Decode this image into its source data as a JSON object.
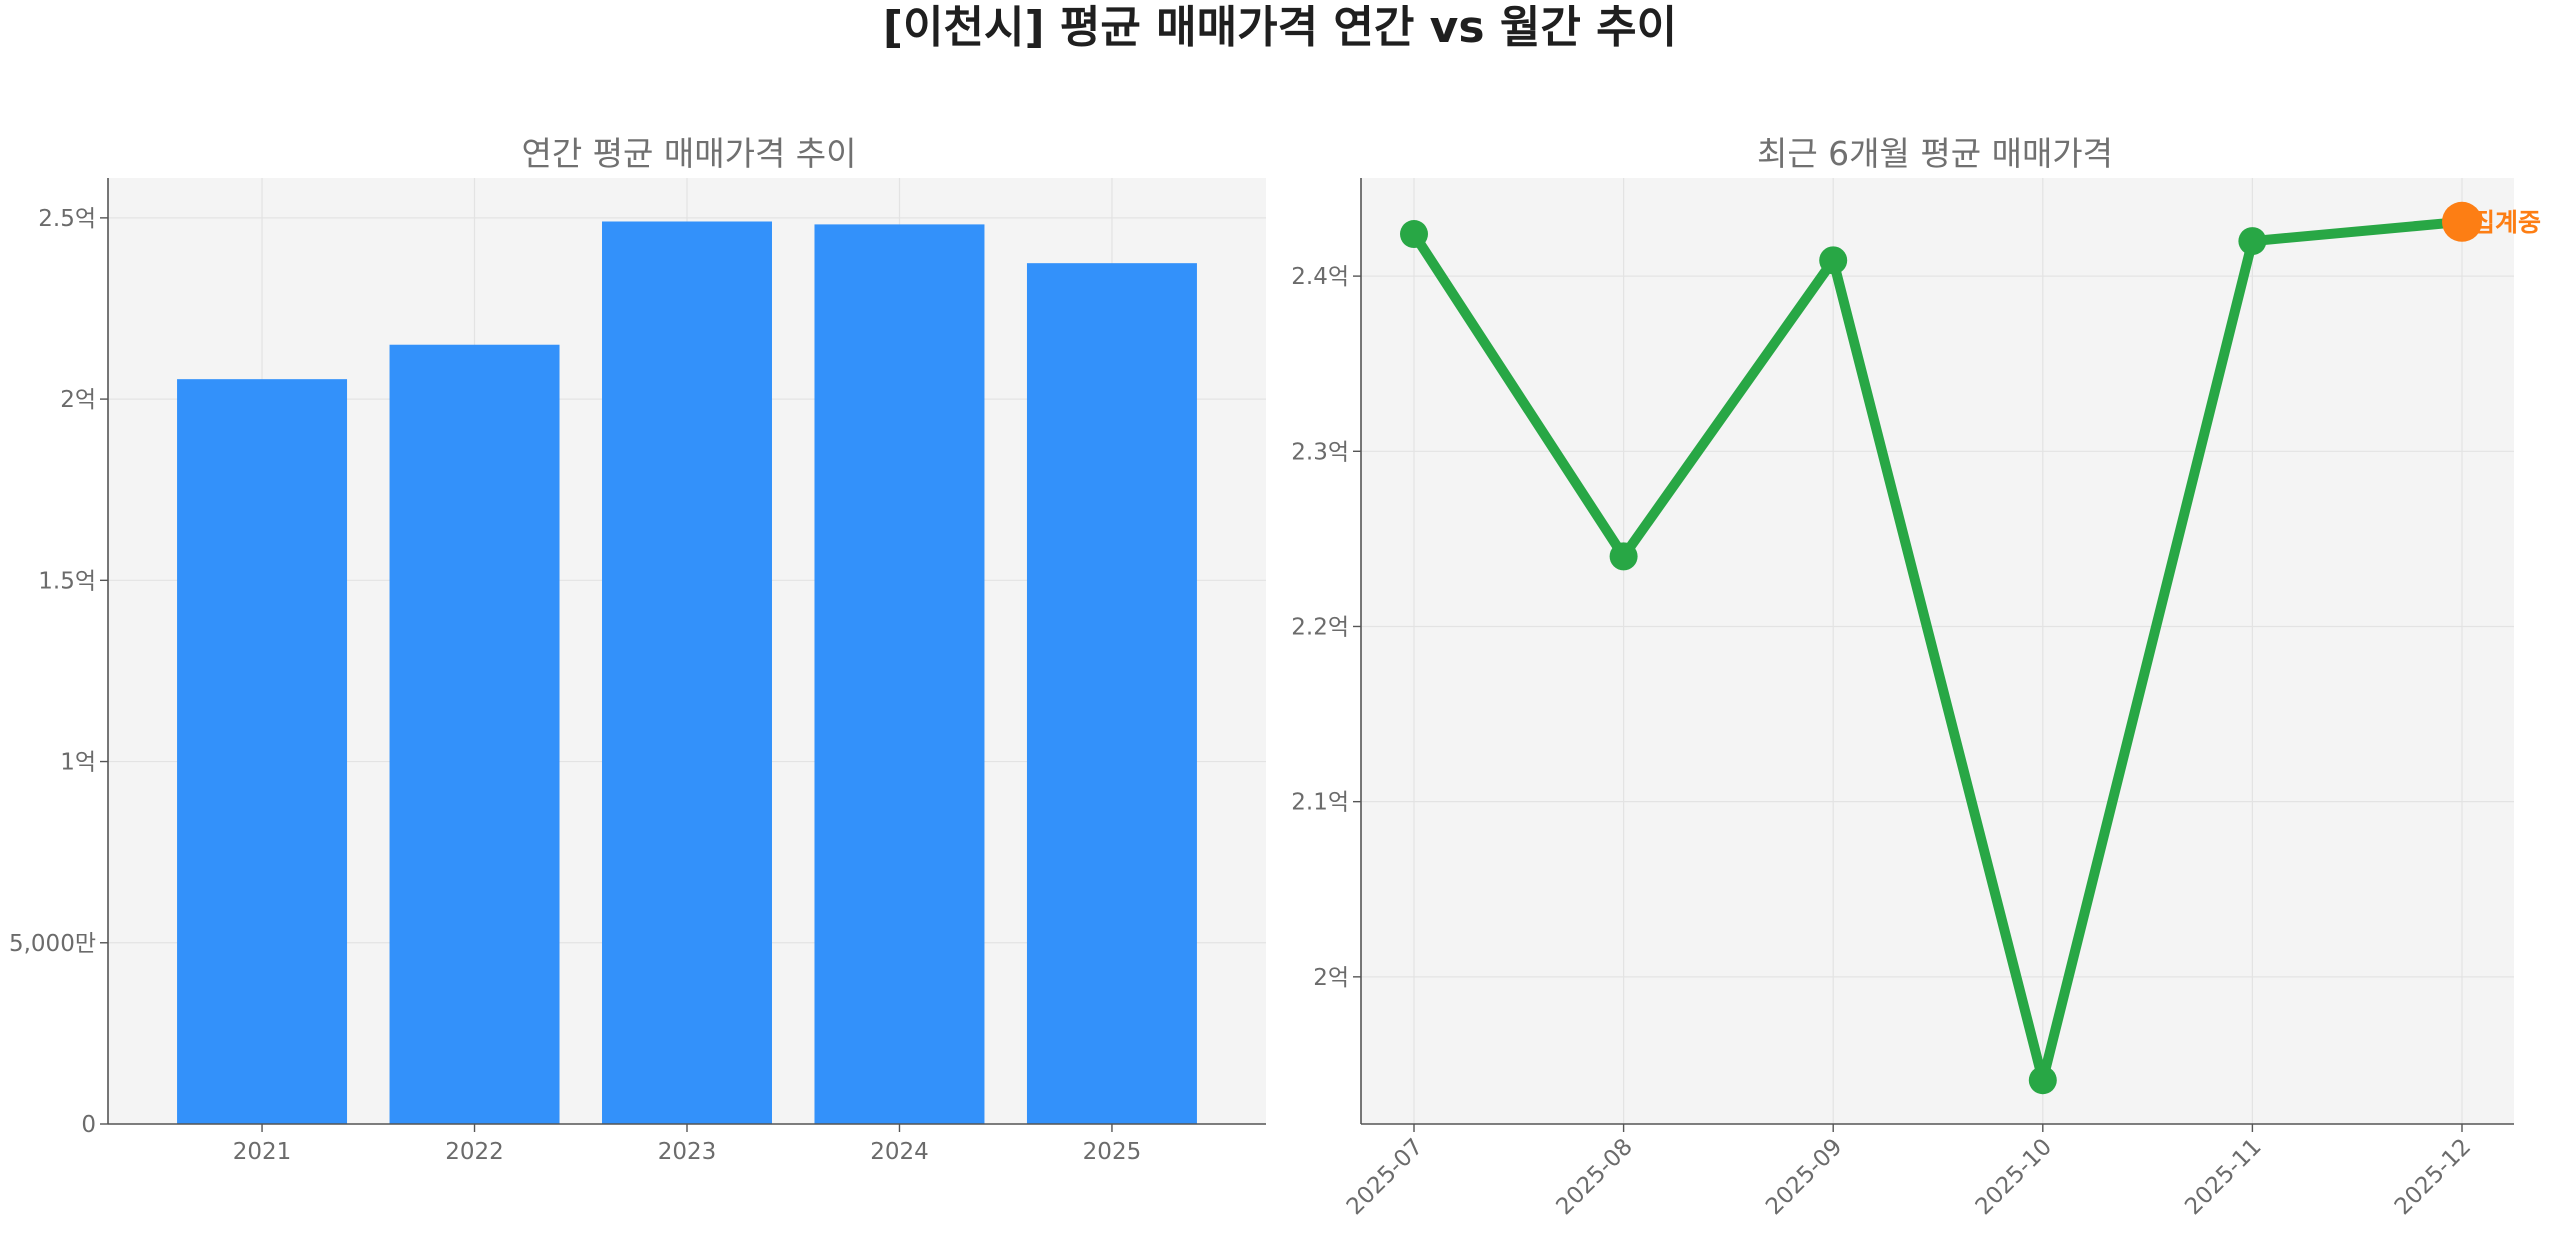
{
  "figure": {
    "title": "[이천시] 평균 매매가격 연간 vs 월간 추이"
  },
  "chart_data": [
    {
      "type": "bar",
      "title": "연간 평균 매매가격 추이",
      "xlabel": "",
      "ylabel": "",
      "categories": [
        "2021",
        "2022",
        "2023",
        "2024",
        "2025"
      ],
      "values": [
        205500000,
        215000000,
        249000000,
        248200000,
        237500000
      ],
      "ylim": [
        0,
        261000000
      ],
      "yticks": [
        {
          "value": 0,
          "label": "0"
        },
        {
          "value": 50000000,
          "label": "5,000만"
        },
        {
          "value": 100000000,
          "label": "1억"
        },
        {
          "value": 150000000,
          "label": "1.5억"
        },
        {
          "value": 200000000,
          "label": "2억"
        },
        {
          "value": 250000000,
          "label": "2.5억"
        }
      ],
      "bar_color": "#3391fa",
      "grid": true
    },
    {
      "type": "line",
      "title": "최근 6개월 평균 매매가격",
      "xlabel": "",
      "ylabel": "",
      "x": [
        "2025-07",
        "2025-08",
        "2025-09",
        "2025-10",
        "2025-11",
        "2025-12"
      ],
      "values": [
        242400000,
        224000000,
        240900000,
        194100000,
        242000000,
        243100000
      ],
      "ylim": [
        191600000,
        245600000
      ],
      "yticks": [
        {
          "value": 200000000,
          "label": "2억"
        },
        {
          "value": 210000000,
          "label": "2.1억"
        },
        {
          "value": 220000000,
          "label": "2.2억"
        },
        {
          "value": 230000000,
          "label": "2.3억"
        },
        {
          "value": 240000000,
          "label": "2.4억"
        }
      ],
      "line_color": "#28a745",
      "highlight": {
        "index": 5,
        "color": "#fd7e14",
        "label": "집계중"
      },
      "grid": true
    }
  ]
}
